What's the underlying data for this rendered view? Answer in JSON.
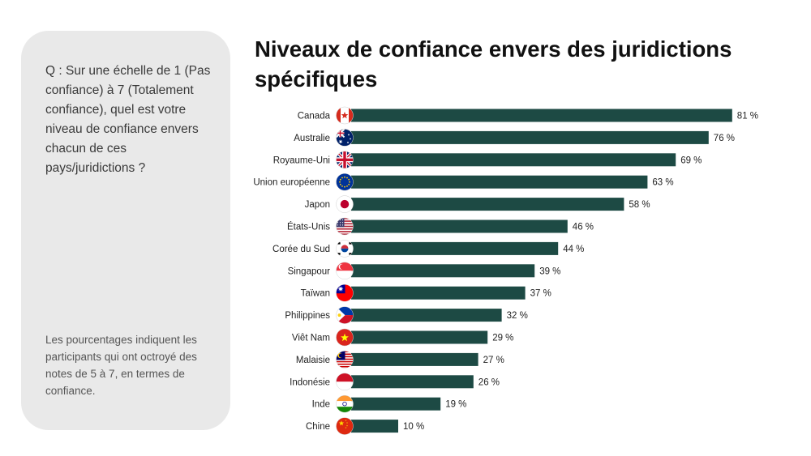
{
  "panel": {
    "question": "Q : Sur une échelle de 1 (Pas confiance) à 7 (Totalement confiance), quel est votre niveau de confiance envers chacun de ces pays/juridictions ?",
    "note": "Les pourcentages indiquent les participants qui ont octroyé des notes de 5 à 7, en termes de confiance."
  },
  "title": "Niveaux de confiance envers des juridictions spécifiques",
  "colors": {
    "bar": "#1d4a44",
    "panel": "#e9e9e9"
  },
  "chart_data": {
    "type": "bar",
    "orientation": "horizontal",
    "title": "Niveaux de confiance envers des juridictions spécifiques",
    "xlim": [
      0,
      100
    ],
    "unit": "%",
    "grid": false,
    "legend": "none",
    "categories": [
      "Canada",
      "Australie",
      "Royaume-Uni",
      "Union européenne",
      "Japon",
      "États-Unis",
      "Corée du Sud",
      "Singapour",
      "Taïwan",
      "Philippines",
      "Viêt Nam",
      "Malaisie",
      "Indonésie",
      "Inde",
      "Chine"
    ],
    "values": [
      81,
      76,
      69,
      63,
      58,
      46,
      44,
      39,
      37,
      32,
      29,
      27,
      26,
      19,
      10
    ],
    "value_labels": [
      "81 %",
      "76 %",
      "69 %",
      "63 %",
      "58 %",
      "46 %",
      "44 %",
      "39 %",
      "37 %",
      "32 %",
      "29 %",
      "27 %",
      "26 %",
      "19 %",
      "10 %"
    ],
    "flags": [
      "canada-flag-icon",
      "australia-flag-icon",
      "uk-flag-icon",
      "eu-flag-icon",
      "japan-flag-icon",
      "usa-flag-icon",
      "south-korea-flag-icon",
      "singapore-flag-icon",
      "taiwan-flag-icon",
      "philippines-flag-icon",
      "vietnam-flag-icon",
      "malaysia-flag-icon",
      "indonesia-flag-icon",
      "india-flag-icon",
      "china-flag-icon"
    ]
  }
}
